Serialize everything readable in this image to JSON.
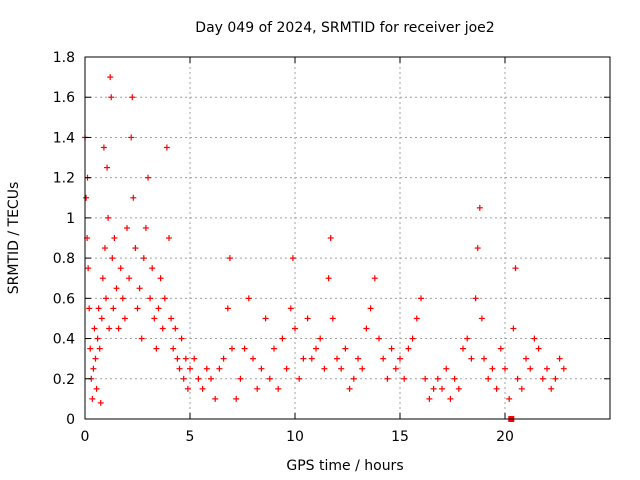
{
  "chart_data": {
    "type": "scatter",
    "title": "Day 049 of 2024, SRMTID for receiver joe2",
    "xlabel": "GPS time / hours",
    "ylabel": "SRMTID / TECUs",
    "xlim": [
      0,
      25
    ],
    "ylim": [
      0,
      1.8
    ],
    "xticks": [
      0,
      5,
      10,
      15,
      20
    ],
    "xtick_labels": [
      "0",
      "5",
      "10",
      "15",
      "20"
    ],
    "yticks": [
      0,
      0.2,
      0.4,
      0.6,
      0.8,
      1,
      1.2,
      1.4,
      1.6,
      1.8
    ],
    "ytick_labels": [
      "0",
      "0.2",
      "0.4",
      "0.6",
      "0.8",
      "1",
      "1.2",
      "1.4",
      "1.6",
      "1.8"
    ],
    "grid": true,
    "marker": "plus",
    "color": "#ff0000",
    "series": [
      {
        "name": "SRMTID",
        "points": [
          [
            0.0,
            1.4
          ],
          [
            0.05,
            1.1
          ],
          [
            0.1,
            0.9
          ],
          [
            0.12,
            1.2
          ],
          [
            0.15,
            0.75
          ],
          [
            0.2,
            0.55
          ],
          [
            0.25,
            0.35
          ],
          [
            0.3,
            0.2
          ],
          [
            0.35,
            0.1
          ],
          [
            0.4,
            0.25
          ],
          [
            0.45,
            0.45
          ],
          [
            0.5,
            0.3
          ],
          [
            0.55,
            0.15
          ],
          [
            0.6,
            0.4
          ],
          [
            0.65,
            0.55
          ],
          [
            0.7,
            0.35
          ],
          [
            0.75,
            0.08
          ],
          [
            0.8,
            0.5
          ],
          [
            0.85,
            0.7
          ],
          [
            0.9,
            1.35
          ],
          [
            0.95,
            0.85
          ],
          [
            1.0,
            0.6
          ],
          [
            1.05,
            1.25
          ],
          [
            1.1,
            1.0
          ],
          [
            1.15,
            0.45
          ],
          [
            1.2,
            1.7
          ],
          [
            1.25,
            1.6
          ],
          [
            1.3,
            0.8
          ],
          [
            1.35,
            0.55
          ],
          [
            1.4,
            0.9
          ],
          [
            1.5,
            0.65
          ],
          [
            1.6,
            0.45
          ],
          [
            1.7,
            0.75
          ],
          [
            1.8,
            0.6
          ],
          [
            1.9,
            0.5
          ],
          [
            2.0,
            0.95
          ],
          [
            2.1,
            0.7
          ],
          [
            2.2,
            1.4
          ],
          [
            2.25,
            1.6
          ],
          [
            2.3,
            1.1
          ],
          [
            2.4,
            0.85
          ],
          [
            2.5,
            0.55
          ],
          [
            2.6,
            0.65
          ],
          [
            2.7,
            0.4
          ],
          [
            2.8,
            0.8
          ],
          [
            2.9,
            0.95
          ],
          [
            3.0,
            1.2
          ],
          [
            3.1,
            0.6
          ],
          [
            3.2,
            0.75
          ],
          [
            3.3,
            0.5
          ],
          [
            3.4,
            0.35
          ],
          [
            3.5,
            0.55
          ],
          [
            3.6,
            0.7
          ],
          [
            3.7,
            0.45
          ],
          [
            3.8,
            0.6
          ],
          [
            3.9,
            1.35
          ],
          [
            4.0,
            0.9
          ],
          [
            4.1,
            0.5
          ],
          [
            4.2,
            0.35
          ],
          [
            4.3,
            0.45
          ],
          [
            4.4,
            0.3
          ],
          [
            4.5,
            0.25
          ],
          [
            4.6,
            0.4
          ],
          [
            4.7,
            0.2
          ],
          [
            4.8,
            0.3
          ],
          [
            4.9,
            0.15
          ],
          [
            5.0,
            0.25
          ],
          [
            5.2,
            0.3
          ],
          [
            5.4,
            0.2
          ],
          [
            5.6,
            0.15
          ],
          [
            5.8,
            0.25
          ],
          [
            6.0,
            0.2
          ],
          [
            6.2,
            0.1
          ],
          [
            6.4,
            0.25
          ],
          [
            6.6,
            0.3
          ],
          [
            6.8,
            0.55
          ],
          [
            6.9,
            0.8
          ],
          [
            7.0,
            0.35
          ],
          [
            7.2,
            0.1
          ],
          [
            7.4,
            0.2
          ],
          [
            7.6,
            0.35
          ],
          [
            7.8,
            0.6
          ],
          [
            8.0,
            0.3
          ],
          [
            8.2,
            0.15
          ],
          [
            8.4,
            0.25
          ],
          [
            8.6,
            0.5
          ],
          [
            8.8,
            0.2
          ],
          [
            9.0,
            0.35
          ],
          [
            9.2,
            0.15
          ],
          [
            9.4,
            0.4
          ],
          [
            9.6,
            0.25
          ],
          [
            9.8,
            0.55
          ],
          [
            9.9,
            0.8
          ],
          [
            10.0,
            0.45
          ],
          [
            10.2,
            0.2
          ],
          [
            10.4,
            0.3
          ],
          [
            10.6,
            0.5
          ],
          [
            10.8,
            0.3
          ],
          [
            11.0,
            0.35
          ],
          [
            11.2,
            0.4
          ],
          [
            11.4,
            0.25
          ],
          [
            11.6,
            0.7
          ],
          [
            11.7,
            0.9
          ],
          [
            11.8,
            0.5
          ],
          [
            12.0,
            0.3
          ],
          [
            12.2,
            0.25
          ],
          [
            12.4,
            0.35
          ],
          [
            12.6,
            0.15
          ],
          [
            12.8,
            0.2
          ],
          [
            13.0,
            0.3
          ],
          [
            13.2,
            0.25
          ],
          [
            13.4,
            0.45
          ],
          [
            13.6,
            0.55
          ],
          [
            13.8,
            0.7
          ],
          [
            14.0,
            0.4
          ],
          [
            14.2,
            0.3
          ],
          [
            14.4,
            0.2
          ],
          [
            14.6,
            0.35
          ],
          [
            14.8,
            0.25
          ],
          [
            15.0,
            0.3
          ],
          [
            15.2,
            0.2
          ],
          [
            15.4,
            0.35
          ],
          [
            15.6,
            0.4
          ],
          [
            15.8,
            0.5
          ],
          [
            16.0,
            0.6
          ],
          [
            16.2,
            0.2
          ],
          [
            16.4,
            0.1
          ],
          [
            16.6,
            0.15
          ],
          [
            16.8,
            0.2
          ],
          [
            17.0,
            0.15
          ],
          [
            17.2,
            0.25
          ],
          [
            17.4,
            0.1
          ],
          [
            17.6,
            0.2
          ],
          [
            17.8,
            0.15
          ],
          [
            18.0,
            0.35
          ],
          [
            18.2,
            0.4
          ],
          [
            18.4,
            0.3
          ],
          [
            18.6,
            0.6
          ],
          [
            18.7,
            0.85
          ],
          [
            18.8,
            1.05
          ],
          [
            18.9,
            0.5
          ],
          [
            19.0,
            0.3
          ],
          [
            19.2,
            0.2
          ],
          [
            19.4,
            0.25
          ],
          [
            19.6,
            0.15
          ],
          [
            19.8,
            0.35
          ],
          [
            20.0,
            0.25
          ],
          [
            20.2,
            0.1
          ],
          [
            20.4,
            0.45
          ],
          [
            20.5,
            0.75
          ],
          [
            20.6,
            0.2
          ],
          [
            20.8,
            0.15
          ],
          [
            21.0,
            0.3
          ],
          [
            21.2,
            0.25
          ],
          [
            21.4,
            0.4
          ],
          [
            21.6,
            0.35
          ],
          [
            21.8,
            0.2
          ],
          [
            22.0,
            0.25
          ],
          [
            22.2,
            0.15
          ],
          [
            22.4,
            0.2
          ],
          [
            22.6,
            0.3
          ],
          [
            22.8,
            0.25
          ]
        ]
      }
    ],
    "annotation_points": [
      [
        20.3,
        0.0
      ]
    ]
  }
}
